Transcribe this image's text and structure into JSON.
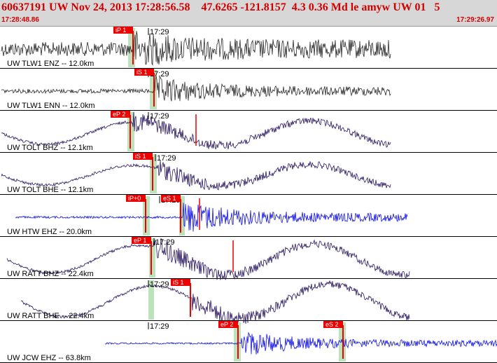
{
  "header": {
    "title": "60637191 UW Nov 24, 2013 17:28:56.58    47.6265 -121.8157  4.3 0.36 Md le amyw UW 01   5",
    "start_time": "17:28:48.86",
    "end_time": "17:29:26.97"
  },
  "colors": {
    "header_bg": "#d7d7d7",
    "header_text": "#d00000",
    "pick": "#ee0000",
    "green_band": "#bde3bd",
    "trace_black": "#2a2a2a",
    "trace_purple": "#2a1660",
    "trace_blue": "#1010e0"
  },
  "time_tick_label": "17:29",
  "panels": [
    {
      "label": "UW TLW1 ENZ -- 12.0km",
      "color": "black",
      "picks": [
        {
          "text": "iP 1"
        }
      ]
    },
    {
      "label": "UW TLW1 ENN -- 12.0km",
      "color": "black",
      "picks": [
        {
          "text": "iS 1"
        }
      ]
    },
    {
      "label": "UW TOLT BHZ -- 12.1km",
      "color": "purple",
      "picks": [
        {
          "text": "eP 2"
        }
      ]
    },
    {
      "label": "UW TOLT BHE -- 12.1km",
      "color": "purple",
      "picks": [
        {
          "text": "iS 1"
        }
      ]
    },
    {
      "label": "UW HTW EHZ -- 20.0km",
      "color": "blue",
      "picks": [
        {
          "text": "iP+0"
        },
        {
          "text": "eS 1"
        }
      ]
    },
    {
      "label": "UW RATT BHZ -- 22.4km",
      "color": "purple",
      "picks": [
        {
          "text": "eP 1"
        }
      ]
    },
    {
      "label": "UW RATT BHE -- 22.4km",
      "color": "purple",
      "picks": [
        {
          "text": "iS 1"
        }
      ]
    },
    {
      "label": "UW JCW EHZ -- 63.8km",
      "color": "blue",
      "picks": [
        {
          "text": "eP 2"
        },
        {
          "text": "eS 2"
        }
      ]
    }
  ]
}
